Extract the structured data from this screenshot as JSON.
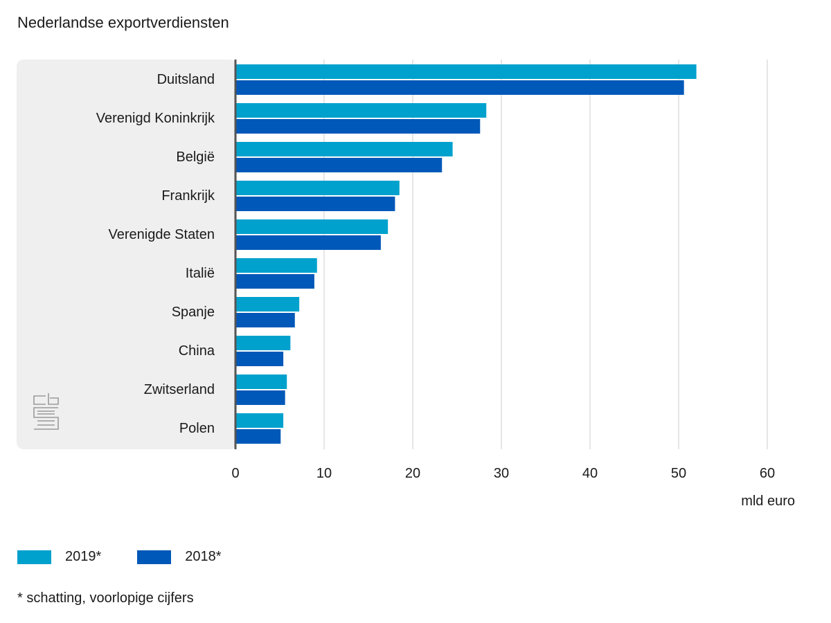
{
  "chart_data": {
    "type": "bar",
    "orientation": "horizontal",
    "title": "Nederlandse exportverdiensten",
    "categories": [
      "Duitsland",
      "Verenigd Koninkrijk",
      "België",
      "Frankrijk",
      "Verenigde Staten",
      "Italië",
      "Spanje",
      "China",
      "Zwitserland",
      "Polen"
    ],
    "series": [
      {
        "name": "2019*",
        "color": "#00a1cd",
        "values": [
          52.0,
          28.3,
          24.5,
          18.5,
          17.2,
          9.2,
          7.2,
          6.2,
          5.8,
          5.4
        ]
      },
      {
        "name": "2018*",
        "color": "#0058b8",
        "values": [
          50.6,
          27.6,
          23.3,
          18.0,
          16.4,
          8.9,
          6.7,
          5.4,
          5.6,
          5.1
        ]
      }
    ],
    "xlabel": "mld euro",
    "xlim": [
      0,
      60
    ],
    "xticks": [
      "0",
      "10",
      "20",
      "30",
      "40",
      "50",
      "60"
    ],
    "grid": true,
    "footnote": "* schatting, voorlopige cijfers",
    "logo_text": "cbs"
  }
}
